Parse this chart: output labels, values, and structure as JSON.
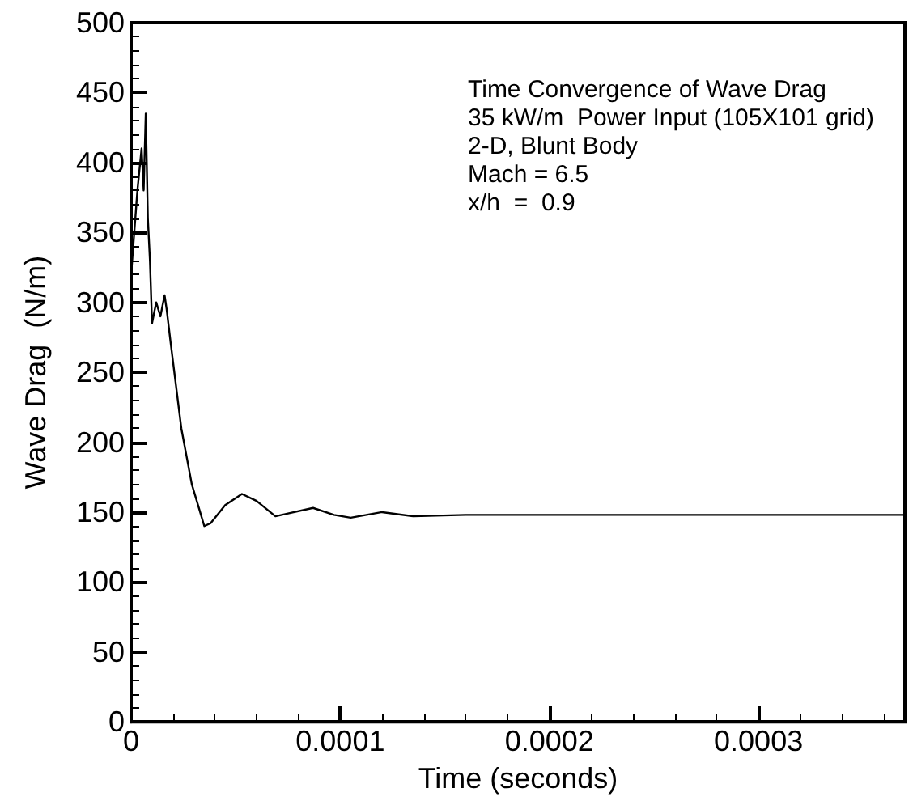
{
  "chart_data": {
    "type": "line",
    "title": "Time Convergence of Wave Drag",
    "annotations": [
      "35 kW/m  Power Input (105X101 grid)",
      "2-D, Blunt Body",
      "Mach = 6.5",
      "x/h  =  0.9"
    ],
    "xlabel": "Time (seconds)",
    "ylabel": "Wave Drag  (N/m)",
    "x": [
      0,
      3e-06,
      5e-06,
      6e-06,
      7e-06,
      8e-06,
      9e-06,
      1e-05,
      1.2e-05,
      1.4e-05,
      1.6e-05,
      1.7e-05,
      1.9e-05,
      2.4e-05,
      2.9e-05,
      3.5e-05,
      3.8e-05,
      4.5e-05,
      5.3e-05,
      6e-05,
      6.9e-05,
      7.5e-05,
      8.7e-05,
      9.7e-05,
      0.000105,
      0.00012,
      0.000135,
      0.00016,
      0.00037
    ],
    "series": [
      {
        "color": "#000000",
        "values": [
          320,
          380,
          410,
          380,
          435,
          360,
          330,
          285,
          300,
          290,
          305,
          295,
          270,
          210,
          170,
          140,
          142,
          155,
          163,
          158,
          147,
          149,
          153,
          148,
          146,
          150,
          147,
          148,
          148
        ]
      }
    ],
    "xlim": [
      0,
      0.00037
    ],
    "xticks": [
      0,
      0.0001,
      0.0002,
      0.0003
    ],
    "ylim": [
      0,
      500
    ],
    "yticks": [
      0,
      50,
      100,
      150,
      200,
      250,
      300,
      350,
      400,
      450,
      500
    ],
    "grid": false,
    "marker": "none",
    "line_style": "solid"
  }
}
